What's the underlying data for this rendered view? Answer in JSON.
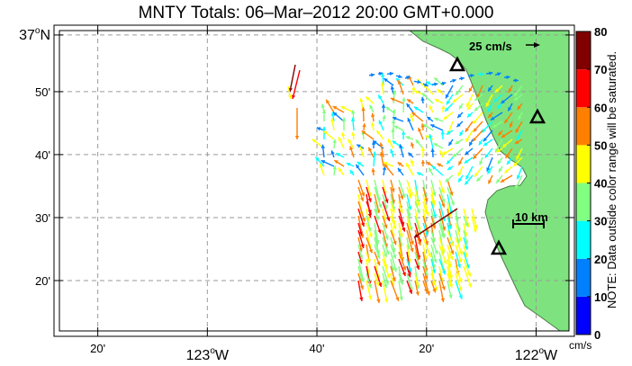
{
  "title": "MNTY Totals: 06–Mar–2012 20:00 GMT+0.000",
  "map": {
    "lon_range": [
      -123.45,
      -121.9
    ],
    "lat_range": [
      36.2,
      36.995
    ],
    "lat_ticks": [
      {
        "value": 36.9833,
        "label_main": "37",
        "label_sup": "o",
        "label_suffix": "N"
      },
      {
        "value": 36.8333,
        "label_main": "50'"
      },
      {
        "value": 36.6667,
        "label_main": "40'"
      },
      {
        "value": 36.5,
        "label_main": "30'"
      },
      {
        "value": 36.3333,
        "label_main": "20'"
      }
    ],
    "lon_ticks": [
      {
        "value": -123.3333,
        "label_main": "20'"
      },
      {
        "value": -123.0,
        "label_main": "123",
        "label_sup": "o",
        "label_suffix": "W"
      },
      {
        "value": -122.6667,
        "label_main": "40'"
      },
      {
        "value": -122.3333,
        "label_main": "20'"
      },
      {
        "value": -122.0,
        "label_main": "122",
        "label_sup": "o",
        "label_suffix": "W"
      }
    ],
    "reference_vector": {
      "label": "25 cm/s"
    },
    "scale_bar": {
      "label": "10 km"
    },
    "land_color": "#7ee37e",
    "coast_color": "#4a7a4a",
    "grid_color": "#9a9a9a",
    "station_marker_icon": "triangle-station-icon"
  },
  "colorbar": {
    "range": [
      0,
      80
    ],
    "tick_labels": [
      "0",
      "10",
      "20",
      "30",
      "40",
      "50",
      "60",
      "70",
      "80"
    ],
    "colors": [
      "#0000ff",
      "#0080ff",
      "#00ffff",
      "#80ff80",
      "#ffff00",
      "#ff8000",
      "#ff0000",
      "#800000"
    ],
    "unit": "cm/s",
    "note": "NOTE: Data outside color range will be saturated."
  }
}
